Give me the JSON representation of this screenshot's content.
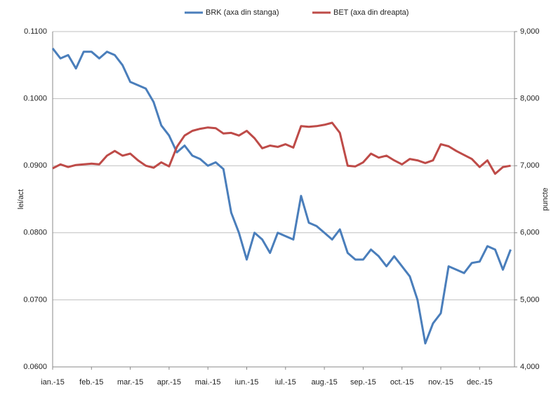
{
  "chart_data": {
    "type": "line",
    "categories": [
      "ian.-15",
      null,
      null,
      null,
      null,
      "feb.-15",
      null,
      null,
      null,
      null,
      "mar.-15",
      null,
      null,
      null,
      null,
      "apr.-15",
      null,
      null,
      null,
      null,
      "mai.-15",
      null,
      null,
      null,
      null,
      "iun.-15",
      null,
      null,
      null,
      null,
      "iul.-15",
      null,
      null,
      null,
      null,
      "aug.-15",
      null,
      null,
      null,
      null,
      "sep.-15",
      null,
      null,
      null,
      null,
      "oct.-15",
      null,
      null,
      null,
      null,
      "nov.-15",
      null,
      null,
      null,
      null,
      "dec.-15",
      null,
      null,
      null,
      null
    ],
    "series": [
      {
        "name": "BRK (axa din stanga)",
        "color": "#4a7ebb",
        "values": [
          0.1075,
          0.106,
          0.1065,
          0.1045,
          0.107,
          0.107,
          0.106,
          0.107,
          0.1065,
          0.105,
          0.1025,
          0.102,
          0.1015,
          0.0995,
          0.096,
          0.0945,
          0.092,
          0.093,
          0.0915,
          0.091,
          0.09,
          0.0905,
          0.0895,
          0.083,
          0.08,
          0.076,
          0.08,
          0.079,
          0.077,
          0.08,
          0.0795,
          0.079,
          0.0855,
          0.0815,
          0.081,
          0.08,
          0.079,
          0.0805,
          0.077,
          0.076,
          0.076,
          0.0775,
          0.0765,
          0.075,
          0.0765,
          0.075,
          0.0735,
          0.07,
          0.0635,
          0.0665,
          0.068,
          0.075,
          0.0745,
          0.074,
          0.0755,
          0.0757,
          0.078,
          0.0775,
          0.0745,
          0.0775
        ]
      },
      {
        "name": "BET (axa din dreapta)",
        "color": "#be4b48",
        "axis": "y2",
        "values": [
          6960,
          7020,
          6980,
          7010,
          7020,
          7030,
          7020,
          7150,
          7220,
          7150,
          7180,
          7080,
          7000,
          6970,
          7050,
          6990,
          7280,
          7450,
          7520,
          7550,
          7570,
          7560,
          7480,
          7490,
          7450,
          7520,
          7410,
          7260,
          7300,
          7280,
          7320,
          7270,
          7590,
          7580,
          7590,
          7610,
          7640,
          7490,
          7000,
          6990,
          7050,
          7180,
          7120,
          7150,
          7080,
          7020,
          7100,
          7080,
          7040,
          7080,
          7320,
          7290,
          7220,
          7160,
          7100,
          6980,
          7080,
          6880,
          6980,
          7000
        ]
      }
    ],
    "ylabel": "lei/act",
    "y2label": "puncte",
    "ylim": [
      0.06,
      0.11
    ],
    "yticks": [
      {
        "value": 0.06,
        "label": "0.0600"
      },
      {
        "value": 0.07,
        "label": "0.0700"
      },
      {
        "value": 0.08,
        "label": "0.0800"
      },
      {
        "value": 0.09,
        "label": "0.0900"
      },
      {
        "value": 0.1,
        "label": "0.1000"
      },
      {
        "value": 0.11,
        "label": "0.1100"
      }
    ],
    "y2lim": [
      4000,
      9000
    ],
    "y2ticks": [
      {
        "value": 4000,
        "label": "4,000"
      },
      {
        "value": 5000,
        "label": "5,000"
      },
      {
        "value": 6000,
        "label": "6,000"
      },
      {
        "value": 7000,
        "label": "7,000"
      },
      {
        "value": 8000,
        "label": "8,000"
      },
      {
        "value": 9000,
        "label": "9,000"
      }
    ],
    "grid": true,
    "legend": "top"
  }
}
